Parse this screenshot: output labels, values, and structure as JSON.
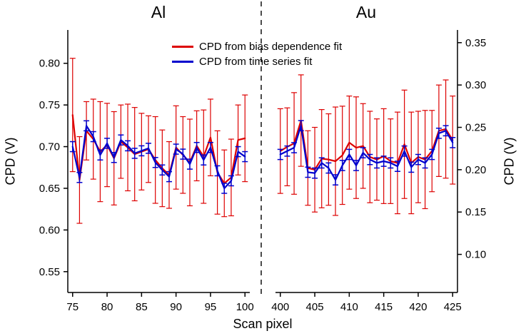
{
  "figure": {
    "titles": {
      "left": "Al",
      "right": "Au"
    },
    "legend": [
      {
        "label": "CPD from bias dependence fit",
        "color": "#dd0000"
      },
      {
        "label": "CPD from time series fit",
        "color": "#0000cd"
      }
    ],
    "axis_labels": {
      "left": "CPD (V)",
      "right": "CPD (V)",
      "bottom": "Scan pixel"
    }
  },
  "chart_data": {
    "type": "line",
    "title": "",
    "xlabel": "Scan pixel",
    "ylabel_left": "CPD (V)",
    "ylabel_right": "CPD (V)",
    "grid": false,
    "legend_position": "top-center",
    "separator": "vertical dashed line between panels",
    "panels": [
      {
        "name": "Al",
        "axis_side": "left",
        "xlim": [
          74.3,
          100.7
        ],
        "ylim": [
          0.525,
          0.84
        ],
        "xticks": [
          75,
          80,
          85,
          90,
          95,
          100
        ],
        "yticks": [
          0.55,
          0.6,
          0.65,
          0.7,
          0.75,
          0.8
        ],
        "x": [
          75,
          76,
          77,
          78,
          79,
          80,
          81,
          82,
          83,
          84,
          85,
          86,
          87,
          88,
          89,
          90,
          91,
          92,
          93,
          94,
          95,
          96,
          97,
          98,
          99,
          100
        ],
        "series": [
          {
            "name": "CPD from bias dependence fit",
            "color": "#dd0000",
            "line_width": 2.2,
            "error_width": 1.2,
            "values": [
              0.738,
              0.66,
              0.719,
              0.709,
              0.694,
              0.702,
              0.686,
              0.706,
              0.699,
              0.691,
              0.694,
              0.697,
              0.684,
              0.674,
              0.666,
              0.699,
              0.69,
              0.681,
              0.701,
              0.688,
              0.711,
              0.669,
              0.656,
              0.663,
              0.708,
              0.71
            ],
            "errors": [
              0.068,
              0.052,
              0.035,
              0.048,
              0.06,
              0.05,
              0.056,
              0.044,
              0.052,
              0.056,
              0.046,
              0.04,
              0.052,
              0.046,
              0.04,
              0.05,
              0.046,
              0.052,
              0.042,
              0.056,
              0.046,
              0.05,
              0.04,
              0.046,
              0.042,
              0.052
            ]
          },
          {
            "name": "CPD from time series fit",
            "color": "#0000cd",
            "line_width": 2.2,
            "error_width": 1.5,
            "values": [
              0.7,
              0.663,
              0.725,
              0.712,
              0.69,
              0.704,
              0.687,
              0.708,
              0.701,
              0.692,
              0.695,
              0.698,
              0.681,
              0.672,
              0.664,
              0.697,
              0.691,
              0.679,
              0.699,
              0.684,
              0.699,
              0.671,
              0.65,
              0.659,
              0.694,
              0.688
            ],
            "errors": 0.006
          }
        ]
      },
      {
        "name": "Au",
        "axis_side": "right",
        "xlim": [
          399.3,
          425.7
        ],
        "ylim": [
          0.055,
          0.365
        ],
        "xticks": [
          400,
          405,
          410,
          415,
          420,
          425
        ],
        "yticks": [
          0.1,
          0.15,
          0.2,
          0.25,
          0.3,
          0.35
        ],
        "x": [
          400,
          401,
          402,
          403,
          404,
          405,
          406,
          407,
          408,
          409,
          410,
          411,
          412,
          413,
          414,
          415,
          416,
          417,
          418,
          419,
          420,
          421,
          422,
          423,
          424,
          425
        ],
        "series": [
          {
            "name": "CPD from bias dependence fit",
            "color": "#dd0000",
            "line_width": 2.2,
            "error_width": 1.2,
            "values": [
              0.222,
              0.227,
              0.231,
              0.258,
              0.202,
              0.2,
              0.213,
              0.212,
              0.21,
              0.217,
              0.232,
              0.226,
              0.228,
              0.215,
              0.212,
              0.216,
              0.21,
              0.208,
              0.23,
              0.208,
              0.215,
              0.212,
              0.222,
              0.246,
              0.248,
              0.235
            ],
            "errors": [
              0.05,
              0.046,
              0.06,
              0.054,
              0.044,
              0.05,
              0.058,
              0.054,
              0.064,
              0.058,
              0.055,
              0.06,
              0.05,
              0.054,
              0.048,
              0.056,
              0.05,
              0.06,
              0.064,
              0.06,
              0.054,
              0.058,
              0.048,
              0.054,
              0.058,
              0.052
            ]
          },
          {
            "name": "CPD from time series fit",
            "color": "#0000cd",
            "line_width": 2.2,
            "error_width": 1.5,
            "values": [
              0.218,
              0.222,
              0.226,
              0.252,
              0.197,
              0.196,
              0.208,
              0.202,
              0.188,
              0.205,
              0.218,
              0.205,
              0.22,
              0.212,
              0.208,
              0.21,
              0.208,
              0.204,
              0.222,
              0.203,
              0.212,
              0.208,
              0.218,
              0.243,
              0.246,
              0.232
            ],
            "errors": 0.006
          }
        ]
      }
    ]
  }
}
